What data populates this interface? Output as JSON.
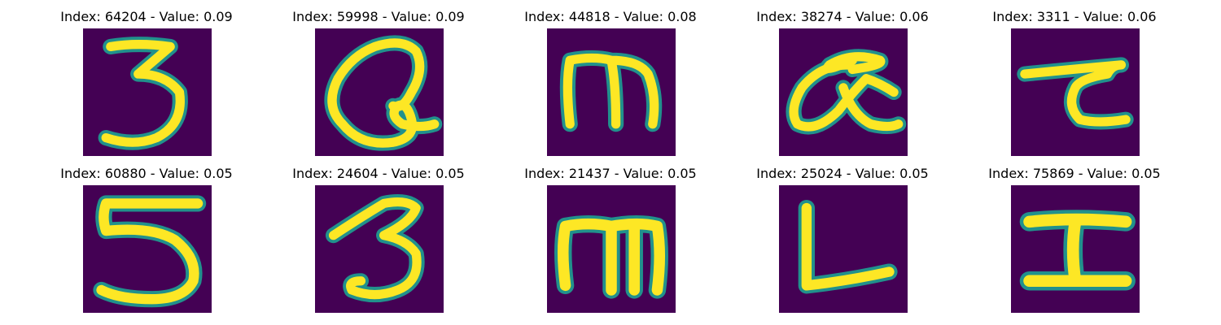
{
  "colors": {
    "background": "#440154",
    "mid_dark": "#31688e",
    "mid": "#21918c",
    "mid_light": "#5ec962",
    "bright": "#fde725"
  },
  "panels": [
    {
      "title": "Index: 64204 - Value: 0.09",
      "glyph": "digit-three"
    },
    {
      "title": "Index: 59998 - Value: 0.09",
      "glyph": "letter-Q-like"
    },
    {
      "title": "Index: 44818 - Value: 0.08",
      "glyph": "letter-m"
    },
    {
      "title": "Index: 38274 - Value: 0.06",
      "glyph": "alpha-like"
    },
    {
      "title": "Index: 3311 - Value: 0.06",
      "glyph": "tau-like"
    },
    {
      "title": "Index: 60880 - Value: 0.05",
      "glyph": "digit-five"
    },
    {
      "title": "Index: 24604 - Value: 0.05",
      "glyph": "digit-three"
    },
    {
      "title": "Index: 21437 - Value: 0.05",
      "glyph": "letter-m"
    },
    {
      "title": "Index: 25024 - Value: 0.05",
      "glyph": "letter-L"
    },
    {
      "title": "Index: 75869 - Value: 0.05",
      "glyph": "letter-I"
    }
  ]
}
